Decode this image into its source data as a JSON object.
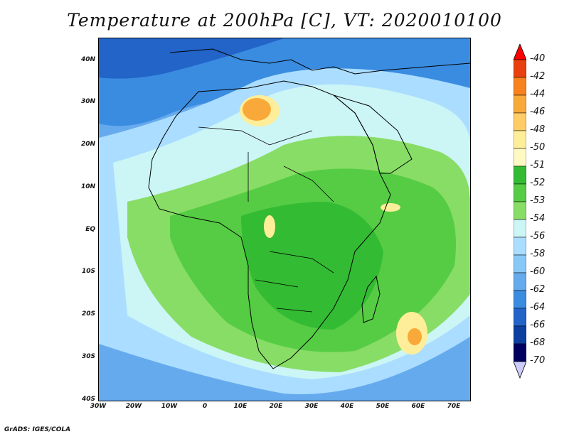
{
  "title": "Temperature at 200hPa [C], VT: 2020010100",
  "lat_labels": [
    "40N",
    "30N",
    "20N",
    "10N",
    "EQ",
    "10S",
    "20S",
    "30S",
    "40S"
  ],
  "lon_labels": [
    "30W",
    "20W",
    "10W",
    "0",
    "10E",
    "20E",
    "30E",
    "40E",
    "50E",
    "60E",
    "70E"
  ],
  "colorbar": {
    "labels": [
      "-40",
      "-42",
      "-44",
      "-46",
      "-48",
      "-50",
      "-51",
      "-52",
      "-53",
      "-54",
      "-56",
      "-58",
      "-60",
      "-62",
      "-64",
      "-66",
      "-68",
      "-70"
    ],
    "colors": [
      "#ff0000",
      "#e8410f",
      "#f7821e",
      "#f9a93a",
      "#ffcc66",
      "#ffee99",
      "#fff9c4",
      "#33bb33",
      "#55cc44",
      "#88dd66",
      "#ccf5f5",
      "#aaddff",
      "#88c8f7",
      "#66aaee",
      "#3a8ce0",
      "#2264c8",
      "#0d3fa0",
      "#000060"
    ]
  },
  "credit": "GrADS: IGES/COLA"
}
